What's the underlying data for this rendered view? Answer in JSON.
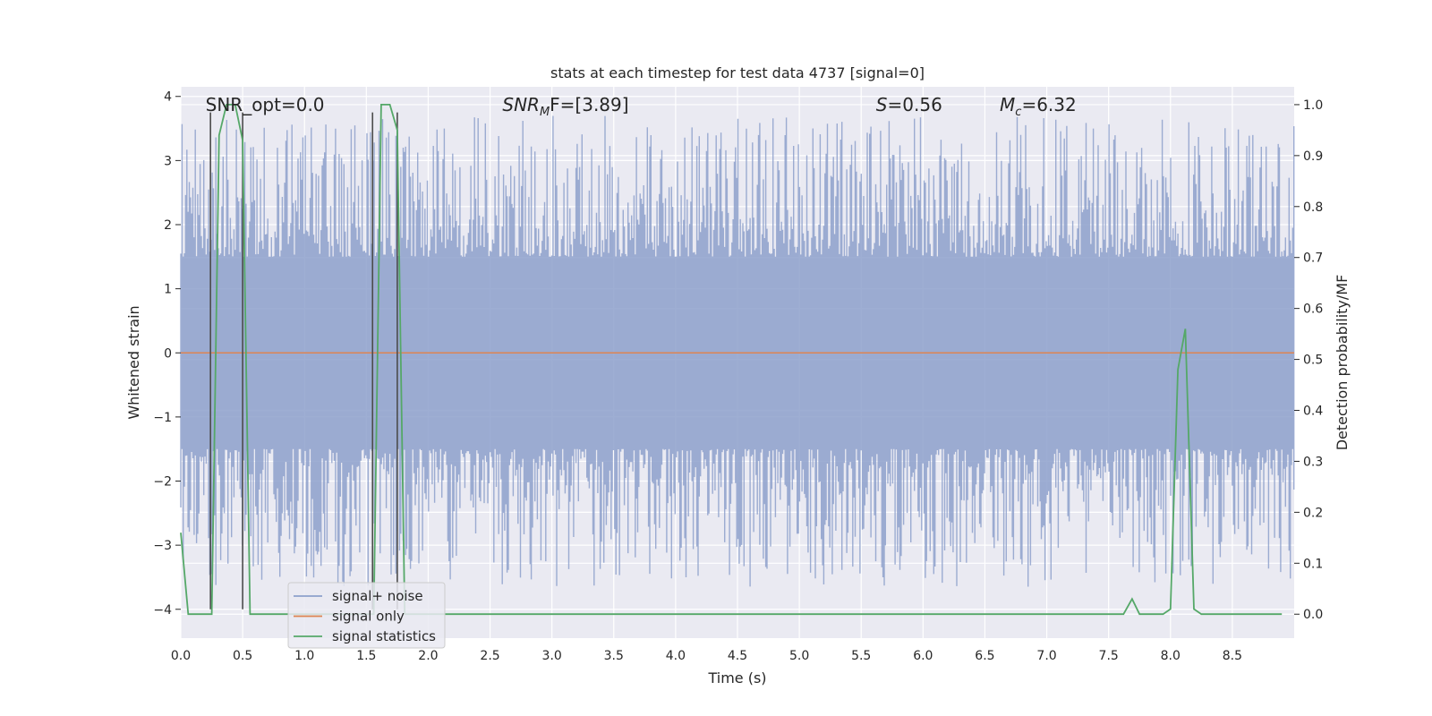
{
  "chart_data": {
    "type": "line",
    "title": "stats at each timestep for test data 4737 [signal=0]",
    "xlabel": "Time (s)",
    "ylabel": "Whitened strain",
    "y2label": "Detection probability/MF",
    "xlim": [
      0,
      9.0
    ],
    "ylim": [
      -4.45,
      4.15
    ],
    "y2lim": [
      -0.047,
      1.035
    ],
    "x_ticks": [
      0.0,
      0.5,
      1.0,
      1.5,
      2.0,
      2.5,
      3.0,
      3.5,
      4.0,
      4.5,
      5.0,
      5.5,
      6.0,
      6.5,
      7.0,
      7.5,
      8.0,
      8.5
    ],
    "x_tick_labels": [
      "0.0",
      "0.5",
      "1.0",
      "1.5",
      "2.0",
      "2.5",
      "3.0",
      "3.5",
      "4.0",
      "4.5",
      "5.0",
      "5.5",
      "6.0",
      "6.5",
      "7.0",
      "7.5",
      "8.0",
      "8.5"
    ],
    "y_ticks": [
      -4,
      -3,
      -2,
      -1,
      0,
      1,
      2,
      3,
      4
    ],
    "y_tick_labels": [
      "−4",
      "−3",
      "−2",
      "−1",
      "0",
      "1",
      "2",
      "3",
      "4"
    ],
    "y2_ticks": [
      0.0,
      0.1,
      0.2,
      0.3,
      0.4,
      0.5,
      0.6,
      0.7,
      0.8,
      0.9,
      1.0
    ],
    "y2_tick_labels": [
      "0.0",
      "0.1",
      "0.2",
      "0.3",
      "0.4",
      "0.5",
      "0.6",
      "0.7",
      "0.8",
      "0.9",
      "1.0"
    ],
    "grid": true,
    "legend_position": "lower-left",
    "annotations": {
      "snr_opt": "SNR_opt=0.0",
      "snr_mf_base": "SNR",
      "snr_mf_sub": "M",
      "snr_mf_rest": "F=[3.89]",
      "s_var": "S",
      "s_value": "=0.56",
      "mc_base": "M",
      "mc_sub": "c",
      "mc_value": "=6.32"
    },
    "series": [
      {
        "name": "signal+ noise",
        "color": "#8da0cb",
        "style": "noise-band",
        "axis": "left",
        "core_range": [
          -1.5,
          1.5
        ],
        "peak_range": [
          -3.65,
          3.7
        ],
        "sample_interval_s": 0.00977
      },
      {
        "name": "signal only",
        "color": "#dd8452",
        "axis": "left",
        "x": [
          0.0,
          9.0
        ],
        "y": [
          0.0,
          0.0
        ]
      },
      {
        "name": "signal statistics",
        "color": "#55a868",
        "axis": "right",
        "x": [
          0.0,
          0.06,
          0.12,
          0.19,
          0.25,
          0.31,
          0.37,
          0.44,
          0.5,
          0.56,
          0.62,
          0.69,
          0.75,
          0.81,
          0.87,
          0.94,
          1.0,
          1.06,
          1.12,
          1.19,
          1.25,
          1.31,
          1.37,
          1.44,
          1.5,
          1.56,
          1.62,
          1.69,
          1.75,
          1.81,
          1.87,
          1.94,
          2.0,
          7.5,
          7.56,
          7.62,
          7.69,
          7.75,
          7.81,
          7.87,
          7.94,
          8.0,
          8.06,
          8.12,
          8.19,
          8.25,
          8.31,
          8.9
        ],
        "y": [
          0.16,
          0.0,
          0.0,
          0.0,
          0.0,
          0.94,
          1.0,
          1.0,
          0.93,
          0.0,
          0.0,
          0.0,
          0.0,
          0.0,
          0.0,
          0.0,
          0.0,
          0.0,
          0.0,
          0.0,
          0.0,
          0.0,
          0.0,
          0.0,
          0.0,
          0.0,
          1.0,
          1.0,
          0.95,
          0.0,
          0.0,
          0.0,
          0.0,
          0.0,
          0.0,
          0.0,
          0.03,
          0.0,
          0.0,
          0.0,
          0.0,
          0.01,
          0.48,
          0.56,
          0.01,
          0.0,
          0.0,
          0.0
        ]
      }
    ],
    "vertical_markers": {
      "color": "#4c4c4c",
      "x": [
        0.24,
        0.5,
        1.55,
        1.75
      ],
      "y_top": 3.75,
      "y_bottom": -4.0
    }
  }
}
